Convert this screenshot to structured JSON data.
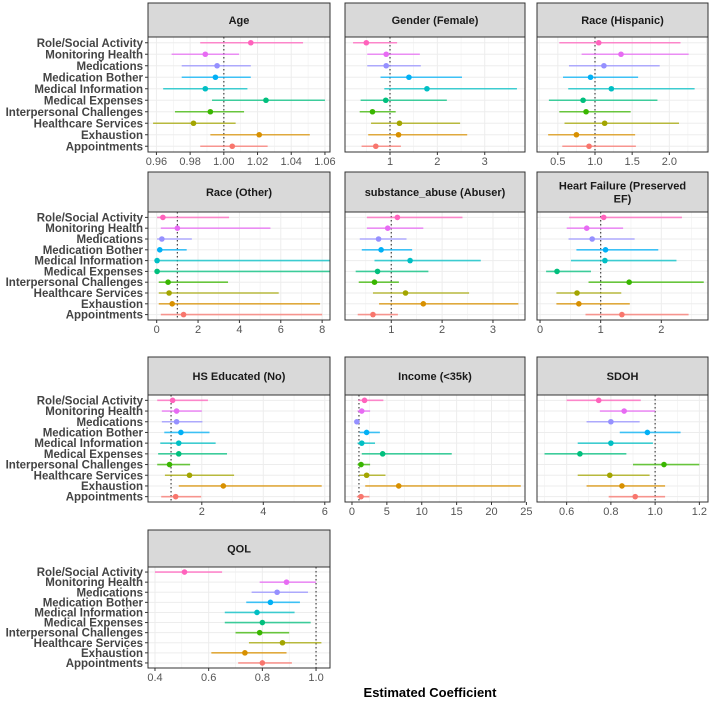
{
  "chart_data": {
    "type": "forest",
    "xlabel": "Estimated Coefficient",
    "reference_line": 1,
    "categories": [
      "Role/Social Activity",
      "Monitoring Health",
      "Medications",
      "Medication Bother",
      "Medical Information",
      "Medical Expenses",
      "Interpersonal Challenges",
      "Healthcare Services",
      "Exhaustion",
      "Appointments"
    ],
    "colors": [
      "#FF62BC",
      "#E76BF3",
      "#9590FF",
      "#00B0F6",
      "#00BFC4",
      "#00BF7D",
      "#39B600",
      "#A3A500",
      "#D89000",
      "#F8766D"
    ],
    "panels": [
      {
        "title": [
          "Age"
        ],
        "xlim": [
          0.955,
          1.063
        ],
        "ticks": [
          0.96,
          0.98,
          1.0,
          1.02,
          1.04,
          1.06
        ],
        "tick_labels": [
          "0.96",
          "0.98",
          "1.00",
          "1.02",
          "1.04",
          "1.06"
        ],
        "est": [
          1.016,
          0.989,
          0.996,
          0.995,
          0.989,
          1.025,
          0.992,
          0.982,
          1.021,
          1.005
        ],
        "lo": [
          0.986,
          0.969,
          0.975,
          0.975,
          0.964,
          0.993,
          0.971,
          0.958,
          0.992,
          0.986
        ],
        "hi": [
          1.047,
          1.009,
          1.016,
          1.016,
          1.014,
          1.06,
          1.012,
          1.007,
          1.051,
          1.026
        ]
      },
      {
        "title": [
          "Gender (Female)"
        ],
        "xlim": [
          0.05,
          3.85
        ],
        "ticks": [
          1,
          2,
          3
        ],
        "tick_labels": [
          "1",
          "2",
          "3"
        ],
        "est": [
          0.5,
          0.92,
          0.92,
          1.4,
          1.78,
          0.91,
          0.63,
          1.2,
          1.18,
          0.7
        ],
        "lo": [
          0.22,
          0.52,
          0.52,
          0.8,
          0.88,
          0.38,
          0.36,
          0.6,
          0.54,
          0.4
        ],
        "hi": [
          1.15,
          1.63,
          1.65,
          2.52,
          3.68,
          2.2,
          1.12,
          2.48,
          2.63,
          1.23
        ]
      },
      {
        "title": [
          "Race (Hispanic)"
        ],
        "xlim": [
          0.22,
          2.52
        ],
        "ticks": [
          0.5,
          1.0,
          1.5,
          2.0
        ],
        "tick_labels": [
          "0.5",
          "1.0",
          "1.5",
          "2.0"
        ],
        "est": [
          1.05,
          1.35,
          1.12,
          0.94,
          1.22,
          0.84,
          0.88,
          1.13,
          0.75,
          0.92
        ],
        "lo": [
          0.52,
          0.82,
          0.65,
          0.57,
          0.64,
          0.38,
          0.52,
          0.59,
          0.37,
          0.56
        ],
        "hi": [
          2.15,
          2.26,
          1.87,
          1.58,
          2.34,
          1.84,
          1.48,
          2.13,
          1.54,
          1.55
        ]
      },
      {
        "title": [
          "Race (Other)"
        ],
        "xlim": [
          -0.42,
          8.38
        ],
        "ticks": [
          0,
          2,
          4,
          6,
          8
        ],
        "tick_labels": [
          "0",
          "2",
          "4",
          "6",
          "8"
        ],
        "est": [
          0.3,
          1.0,
          0.25,
          0.15,
          0.02,
          0.02,
          0.55,
          0.6,
          0.75,
          1.3
        ],
        "lo": [
          0.02,
          0.2,
          0.02,
          0.01,
          0,
          0,
          0.1,
          0.1,
          0.1,
          0.2
        ],
        "hi": [
          3.5,
          5.5,
          1.7,
          1.45,
          8.38,
          8.38,
          3.45,
          5.9,
          7.9,
          8.0
        ]
      },
      {
        "title": [
          "substance_abuse (Abuser)"
        ],
        "xlim": [
          0.09,
          3.63
        ],
        "ticks": [
          1,
          2,
          3
        ],
        "tick_labels": [
          "1",
          "2",
          "3"
        ],
        "est": [
          1.12,
          0.93,
          0.75,
          0.8,
          1.37,
          0.73,
          0.67,
          1.28,
          1.63,
          0.64
        ],
        "lo": [
          0.52,
          0.52,
          0.38,
          0.42,
          0.67,
          0.3,
          0.36,
          0.64,
          0.76,
          0.34
        ],
        "hi": [
          2.4,
          1.63,
          1.3,
          1.41,
          2.76,
          1.73,
          1.15,
          2.53,
          3.5,
          1.13
        ]
      },
      {
        "title": [
          "Heart Failure (Preserved",
          "EF)"
        ],
        "xlim": [
          -0.05,
          2.77
        ],
        "ticks": [
          0,
          1,
          2
        ],
        "tick_labels": [
          "0",
          "1",
          "2"
        ],
        "est": [
          1.05,
          0.77,
          0.86,
          1.08,
          1.07,
          0.28,
          1.47,
          0.61,
          0.64,
          1.35
        ],
        "lo": [
          0.48,
          0.44,
          0.47,
          0.6,
          0.51,
          0.1,
          0.8,
          0.27,
          0.27,
          0.75
        ],
        "hi": [
          2.34,
          1.37,
          1.56,
          1.95,
          2.25,
          0.84,
          2.7,
          1.34,
          1.48,
          2.45
        ]
      },
      {
        "title": [
          "HS Educated (No)"
        ],
        "xlim": [
          0.25,
          6.17
        ],
        "ticks": [
          2,
          4,
          6
        ],
        "tick_labels": [
          "2",
          "4",
          "6"
        ],
        "est": [
          1.05,
          1.18,
          1.18,
          1.32,
          1.25,
          1.25,
          0.95,
          1.6,
          2.7,
          1.15
        ],
        "lo": [
          0.55,
          0.7,
          0.7,
          0.78,
          0.65,
          0.58,
          0.55,
          0.8,
          1.25,
          0.68
        ],
        "hi": [
          2.2,
          2.0,
          2.02,
          2.25,
          2.45,
          2.82,
          1.62,
          3.05,
          5.9,
          1.98
        ]
      },
      {
        "title": [
          "Income (<35k)"
        ],
        "xlim": [
          -1.0,
          24.8
        ],
        "ticks": [
          0,
          5,
          10,
          15,
          20,
          25
        ],
        "tick_labels": [
          "0",
          "5",
          "10",
          "15",
          "20",
          "25"
        ],
        "est": [
          1.8,
          1.4,
          0.7,
          2.1,
          1.4,
          4.4,
          1.3,
          2.1,
          6.7,
          1.3
        ],
        "lo": [
          0.9,
          0.8,
          0.4,
          1.1,
          0.8,
          1.4,
          0.8,
          1.0,
          1.9,
          0.7
        ],
        "hi": [
          4.5,
          2.6,
          0.9,
          4.0,
          3.3,
          14.3,
          2.6,
          4.8,
          24.2,
          2.5
        ]
      },
      {
        "title": [
          "SDOH"
        ],
        "xlim": [
          0.466,
          1.239
        ],
        "ticks": [
          0.6,
          0.8,
          1.0,
          1.2
        ],
        "tick_labels": [
          "0.6",
          "0.8",
          "1.0",
          "1.2"
        ],
        "est": [
          0.745,
          0.86,
          0.8,
          0.965,
          0.8,
          0.66,
          1.04,
          0.795,
          0.85,
          0.91
        ],
        "lo": [
          0.6,
          0.75,
          0.69,
          0.84,
          0.65,
          0.5,
          0.9,
          0.65,
          0.69,
          0.79
        ],
        "hi": [
          0.935,
          1.0,
          0.93,
          1.115,
          0.99,
          0.87,
          1.2,
          0.975,
          1.045,
          1.045
        ]
      },
      {
        "title": [
          "QOL"
        ],
        "xlim": [
          0.374,
          1.052
        ],
        "ticks": [
          0.4,
          0.6,
          0.8,
          1.0
        ],
        "tick_labels": [
          "0.4",
          "0.6",
          "0.8",
          "1.0"
        ],
        "est": [
          0.51,
          0.89,
          0.855,
          0.83,
          0.78,
          0.8,
          0.79,
          0.875,
          0.735,
          0.8
        ],
        "lo": [
          0.4,
          0.79,
          0.76,
          0.74,
          0.66,
          0.66,
          0.7,
          0.75,
          0.61,
          0.71
        ],
        "hi": [
          0.65,
          1.0,
          0.97,
          0.94,
          0.92,
          0.98,
          0.9,
          1.02,
          0.89,
          0.91
        ]
      }
    ]
  }
}
